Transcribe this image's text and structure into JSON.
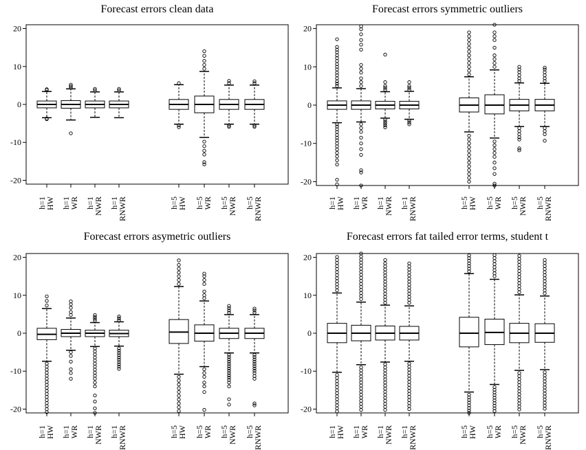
{
  "figure": {
    "colors": {
      "ink": "#000000",
      "box_fill": "#ffffff",
      "background": "#ffffff"
    }
  },
  "chart_data": [
    {
      "type": "boxplot",
      "title": "Forecast errors clean data",
      "ylim": [
        -21,
        21
      ],
      "yticks": [
        -20,
        -10,
        0,
        10,
        20
      ],
      "categories": [
        [
          "h=1",
          "HW"
        ],
        [
          "h=1",
          "WR"
        ],
        [
          "h=1",
          "NWR"
        ],
        [
          "h=1",
          "RNWR"
        ],
        [
          "h=5",
          "HW"
        ],
        [
          "h=5",
          "WR"
        ],
        [
          "h=5",
          "NWR"
        ],
        [
          "h=5",
          "RNWR"
        ]
      ],
      "boxes": [
        {
          "q1": -0.9,
          "median": 0,
          "q3": 0.9,
          "whisker_low": -3.5,
          "whisker_high": 3.4,
          "outliers": [
            3.8,
            4.0,
            -3.7,
            -3.9
          ]
        },
        {
          "q1": -1.0,
          "median": 0,
          "q3": 1.0,
          "whisker_low": -4.1,
          "whisker_high": 4.1,
          "outliers": [
            4.4,
            4.8,
            5.2,
            -7.6
          ]
        },
        {
          "q1": -0.9,
          "median": 0,
          "q3": 0.9,
          "whisker_low": -3.4,
          "whisker_high": 3.3,
          "outliers": [
            3.7,
            4.1
          ]
        },
        {
          "q1": -0.9,
          "median": 0,
          "q3": 0.9,
          "whisker_low": -3.5,
          "whisker_high": 3.3,
          "outliers": [
            3.7,
            4.1
          ]
        },
        {
          "q1": -1.3,
          "median": 0,
          "q3": 1.3,
          "whisker_low": -5.2,
          "whisker_high": 5.2,
          "outliers": [
            5.6,
            -5.5,
            -6.0
          ]
        },
        {
          "q1": -2.2,
          "median": 0,
          "q3": 2.2,
          "whisker_low": -8.7,
          "whisker_high": 8.7,
          "outliers": [
            9.4,
            10.4,
            11.5,
            12.8,
            14.0,
            -9.8,
            -11.0,
            -12.2,
            -13.2,
            -15.2,
            -15.8
          ]
        },
        {
          "q1": -1.3,
          "median": 0,
          "q3": 1.3,
          "whisker_low": -5.2,
          "whisker_high": 5.1,
          "outliers": [
            5.6,
            6.2,
            -5.6,
            -5.9
          ]
        },
        {
          "q1": -1.3,
          "median": 0,
          "q3": 1.3,
          "whisker_low": -5.2,
          "whisker_high": 5.1,
          "outliers": [
            5.6,
            6.1,
            -5.6,
            -5.9
          ]
        }
      ]
    },
    {
      "type": "boxplot",
      "title": "Forecast errors symmetric outliers",
      "ylim": [
        -21,
        21
      ],
      "yticks": [
        -20,
        -10,
        0,
        10,
        20
      ],
      "categories": [
        [
          "h=1",
          "HW"
        ],
        [
          "h=1",
          "WR"
        ],
        [
          "h=1",
          "NWR"
        ],
        [
          "h=1",
          "RNWR"
        ],
        [
          "h=5",
          "HW"
        ],
        [
          "h=5",
          "WR"
        ],
        [
          "h=5",
          "NWR"
        ],
        [
          "h=5",
          "RNWR"
        ]
      ],
      "boxes": [
        {
          "q1": -1.1,
          "median": 0,
          "q3": 1.1,
          "whisker_low": -4.6,
          "whisker_high": 4.5,
          "outliers": [
            5,
            5.6,
            6.2,
            7,
            7.8,
            8.5,
            9.3,
            10,
            10.7,
            11.5,
            12.3,
            13,
            13.8,
            14.5,
            15.2,
            17.2,
            -5,
            -5.6,
            -6.3,
            -7,
            -7.8,
            -8.5,
            -9.2,
            -10,
            -10.8,
            -11.6,
            -12.5,
            -13.4,
            -14.4,
            -15.5,
            -19.5,
            -20.7
          ]
        },
        {
          "q1": -1.1,
          "median": 0,
          "q3": 1.1,
          "whisker_low": -4.4,
          "whisker_high": 4.3,
          "outliers": [
            5,
            6,
            7,
            8.5,
            9.5,
            10.5,
            14.5,
            15.8,
            17,
            18.5,
            19.8,
            20.6,
            -5,
            -6,
            -7,
            -8.5,
            -10,
            -11.5,
            -13,
            -17,
            -17.6,
            -21
          ]
        },
        {
          "q1": -1.0,
          "median": 0,
          "q3": 1.0,
          "whisker_low": -3.4,
          "whisker_high": 3.5,
          "outliers": [
            4,
            4.5,
            5,
            6,
            13.2,
            -3.8,
            -4.3,
            -4.8,
            -5.3,
            -5.8
          ]
        },
        {
          "q1": -1.0,
          "median": 0,
          "q3": 1.0,
          "whisker_low": -3.7,
          "whisker_high": 3.6,
          "outliers": [
            4,
            4.5,
            5,
            6,
            -4,
            -4.5,
            -5
          ]
        },
        {
          "q1": -1.8,
          "median": 0,
          "q3": 1.9,
          "whisker_low": -7.0,
          "whisker_high": 7.4,
          "outliers": [
            8,
            9,
            10,
            11,
            12,
            13,
            14,
            15,
            16,
            17,
            18,
            19,
            -8,
            -9,
            -10,
            -11,
            -12,
            -13,
            -14,
            -15,
            -16,
            -17,
            -18,
            -19,
            -20
          ]
        },
        {
          "q1": -2.3,
          "median": 0,
          "q3": 2.7,
          "whisker_low": -8.6,
          "whisker_high": 9.2,
          "outliers": [
            10,
            11,
            12,
            13,
            15,
            17,
            18,
            19,
            21,
            -9.5,
            -10.5,
            -11.5,
            -12.5,
            -13.5,
            -15,
            -16.5,
            -18,
            -20.5,
            -21
          ]
        },
        {
          "q1": -1.5,
          "median": 0,
          "q3": 1.5,
          "whisker_low": -5.6,
          "whisker_high": 5.8,
          "outliers": [
            6.3,
            7,
            7.8,
            8.6,
            9.3,
            10,
            -6,
            -6.8,
            -7.6,
            -8.4,
            -9,
            -11.3,
            -11.8
          ]
        },
        {
          "q1": -1.5,
          "median": 0,
          "q3": 1.5,
          "whisker_low": -5.6,
          "whisker_high": 5.7,
          "outliers": [
            6.3,
            7,
            7.8,
            8.6,
            9.3,
            9.8,
            -6,
            -6.8,
            -7.6,
            -9.3
          ]
        }
      ]
    },
    {
      "type": "boxplot",
      "title": "Forecast errors asymetric outliers",
      "ylim": [
        -21,
        21
      ],
      "yticks": [
        -20,
        -10,
        0,
        10,
        20
      ],
      "categories": [
        [
          "h=1",
          "HW"
        ],
        [
          "h=1",
          "WR"
        ],
        [
          "h=1",
          "NWR"
        ],
        [
          "h=1",
          "RNWR"
        ],
        [
          "h=5",
          "HW"
        ],
        [
          "h=5",
          "WR"
        ],
        [
          "h=5",
          "NWR"
        ],
        [
          "h=5",
          "RNWR"
        ]
      ],
      "boxes": [
        {
          "q1": -1.7,
          "median": -0.3,
          "q3": 1.3,
          "whisker_low": -7.4,
          "whisker_high": 6.5,
          "outliers": [
            7.3,
            8.5,
            9.7,
            -8,
            -8.8,
            -9.6,
            -10.4,
            -11.2,
            -12,
            -12.8,
            -13.6,
            -14.4,
            -15.2,
            -16,
            -16.8,
            -17.6,
            -18.4,
            -19.2,
            -20,
            -20.8
          ]
        },
        {
          "q1": -0.9,
          "median": 0,
          "q3": 1.0,
          "whisker_low": -4.5,
          "whisker_high": 4.0,
          "outliers": [
            4.8,
            5.6,
            6.7,
            7.6,
            8.4,
            -5,
            -6,
            -7.5,
            -9.5,
            -10.5,
            -12
          ]
        },
        {
          "q1": -0.9,
          "median": 0,
          "q3": 0.8,
          "whisker_low": -3.5,
          "whisker_high": 2.8,
          "outliers": [
            3.3,
            3.8,
            4.3,
            4.8,
            -4,
            -4.8,
            -5.6,
            -6.4,
            -7.2,
            -8,
            -8.8,
            -9.6,
            -10.4,
            -11.2,
            -12,
            -13,
            -14,
            -16.4,
            -18,
            -19.8,
            -21
          ]
        },
        {
          "q1": -0.9,
          "median": -0.1,
          "q3": 0.8,
          "whisker_low": -3.4,
          "whisker_high": 3.0,
          "outliers": [
            3.4,
            3.9,
            4.4,
            -4,
            -4.6,
            -5.2,
            -5.8,
            -6.4,
            -7,
            -7.6,
            -8.2,
            -8.8,
            -9.4
          ]
        },
        {
          "q1": -2.7,
          "median": 0.3,
          "q3": 3.6,
          "whisker_low": -10.8,
          "whisker_high": 12.3,
          "outliers": [
            13,
            14,
            15,
            16,
            17,
            18,
            19.2,
            -11.5,
            -12.5,
            -13.5,
            -14.5,
            -15.5,
            -16.5,
            -17.5,
            -18.5,
            -19.5,
            -20.5
          ]
        },
        {
          "q1": -2.1,
          "median": 0,
          "q3": 2.2,
          "whisker_low": -8.8,
          "whisker_high": 8.5,
          "outliers": [
            9.2,
            10,
            11,
            13,
            14,
            15,
            15.7,
            -9.5,
            -10.5,
            -11.5,
            -13,
            -14,
            -15.5,
            -20.2
          ]
        },
        {
          "q1": -1.4,
          "median": 0,
          "q3": 1.3,
          "whisker_low": -5.2,
          "whisker_high": 4.9,
          "outliers": [
            5.4,
            6,
            6.6,
            7.2,
            -5.7,
            -6.3,
            -6.9,
            -7.5,
            -8.1,
            -8.7,
            -9.3,
            -9.9,
            -10.5,
            -11.1,
            -11.7,
            -12.3,
            -13,
            -14,
            -17.4,
            -18.8
          ]
        },
        {
          "q1": -1.4,
          "median": 0,
          "q3": 1.3,
          "whisker_low": -5.2,
          "whisker_high": 4.9,
          "outliers": [
            5.4,
            6,
            6.5,
            -5.7,
            -6.3,
            -6.9,
            -7.5,
            -8.1,
            -8.7,
            -9.3,
            -9.9,
            -10.5,
            -11.3,
            -12,
            -18.5,
            -19
          ]
        }
      ]
    },
    {
      "type": "boxplot",
      "title": "Forecast errors fat tailed error terms, student t",
      "ylim": [
        -21,
        21
      ],
      "yticks": [
        -20,
        -10,
        0,
        10,
        20
      ],
      "categories": [
        [
          "h=1",
          "HW"
        ],
        [
          "h=1",
          "WR"
        ],
        [
          "h=1",
          "NWR"
        ],
        [
          "h=1",
          "RNWR"
        ],
        [
          "h=5",
          "HW"
        ],
        [
          "h=5",
          "WR"
        ],
        [
          "h=5",
          "NWR"
        ],
        [
          "h=5",
          "RNWR"
        ]
      ],
      "boxes": [
        {
          "q1": -2.5,
          "median": 0,
          "q3": 2.6,
          "whisker_low": -10.3,
          "whisker_high": 10.6,
          "outliers": [
            11.3,
            12.1,
            12.9,
            13.7,
            14.5,
            15.3,
            16.1,
            16.9,
            17.7,
            18.5,
            19.3,
            20.1,
            -11,
            -11.8,
            -12.6,
            -13.4,
            -14.2,
            -15,
            -15.8,
            -16.6,
            -17.4,
            -18.2,
            -19,
            -19.8,
            -20.6
          ]
        },
        {
          "q1": -2.0,
          "median": 0,
          "q3": 2.1,
          "whisker_low": -8.3,
          "whisker_high": 8.2,
          "outliers": [
            9,
            9.8,
            10.6,
            11.4,
            12.2,
            13,
            13.8,
            14.6,
            15.4,
            16.2,
            17,
            17.8,
            18.6,
            19.4,
            20.2,
            21,
            -9,
            -9.8,
            -10.6,
            -11.4,
            -12.2,
            -13,
            -13.8,
            -14.6,
            -15.4,
            -16.2,
            -17,
            -17.8,
            -18.6,
            -19.4,
            -20.2
          ]
        },
        {
          "q1": -1.8,
          "median": 0,
          "q3": 1.9,
          "whisker_low": -7.6,
          "whisker_high": 7.4,
          "outliers": [
            8,
            8.8,
            9.6,
            10.4,
            11.2,
            12,
            12.8,
            13.6,
            14.4,
            15.2,
            16,
            16.8,
            17.6,
            18.4,
            19.3,
            -8.2,
            -9,
            -9.8,
            -10.6,
            -11.4,
            -12.2,
            -13,
            -13.8,
            -14.6,
            -15.4,
            -16.2,
            -17,
            -17.8,
            -18.6,
            -19.4,
            -20.2
          ]
        },
        {
          "q1": -1.8,
          "median": 0,
          "q3": 1.8,
          "whisker_low": -7.4,
          "whisker_high": 7.2,
          "outliers": [
            8,
            8.8,
            9.6,
            10.4,
            11.2,
            12,
            12.8,
            13.6,
            14.4,
            15.2,
            16,
            16.8,
            17.6,
            18.4,
            -8,
            -8.8,
            -9.6,
            -10.4,
            -11.2,
            -12,
            -12.8,
            -13.6,
            -14.4,
            -15.2,
            -16,
            -16.8,
            -17.6,
            -18.4,
            -19.2,
            -20
          ]
        },
        {
          "q1": -3.6,
          "median": 0,
          "q3": 4.2,
          "whisker_low": -15.5,
          "whisker_high": 15.7,
          "outliers": [
            16.3,
            17,
            17.7,
            18.4,
            19.1,
            19.8,
            20.5,
            -16.2,
            -16.9,
            -17.6,
            -18.3,
            -19,
            -19.7,
            -20.4,
            -21
          ]
        },
        {
          "q1": -3.0,
          "median": 0.2,
          "q3": 3.7,
          "whisker_low": -13.5,
          "whisker_high": 14.2,
          "outliers": [
            15,
            15.8,
            16.6,
            17.4,
            18.2,
            19,
            19.8,
            20.6,
            -14.2,
            -14.9,
            -15.6,
            -16.3,
            -17,
            -17.7,
            -18.4,
            -19.1,
            -19.8,
            -20.5
          ]
        },
        {
          "q1": -2.5,
          "median": 0,
          "q3": 2.6,
          "whisker_low": -9.8,
          "whisker_high": 10.1,
          "outliers": [
            10.8,
            11.6,
            12.4,
            13.2,
            14,
            14.8,
            15.6,
            16.4,
            17.2,
            18,
            18.8,
            19.6,
            20.4,
            21.2,
            -10.5,
            -11.3,
            -12.1,
            -12.9,
            -13.7,
            -14.5,
            -15.3,
            -16.1,
            -16.9,
            -17.7,
            -18.5,
            -19.3,
            -20.1
          ]
        },
        {
          "q1": -2.4,
          "median": 0,
          "q3": 2.5,
          "whisker_low": -9.6,
          "whisker_high": 9.8,
          "outliers": [
            10.5,
            11.3,
            12.1,
            12.9,
            13.7,
            14.5,
            15.3,
            16.1,
            16.9,
            17.7,
            18.5,
            19.3,
            21.5,
            -10.3,
            -11.1,
            -11.9,
            -12.7,
            -13.5,
            -14.3,
            -15.1,
            -15.9,
            -16.7,
            -17.5,
            -18.3,
            -19.1,
            -19.9
          ]
        }
      ]
    }
  ]
}
